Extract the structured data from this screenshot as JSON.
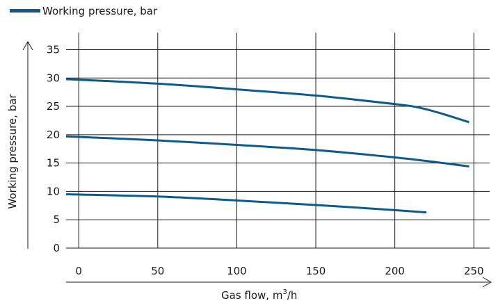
{
  "chart_data": {
    "type": "line",
    "xlabel": "Gas flow, m",
    "xlabel_sup": "3",
    "xlabel_suffix": "/h",
    "ylabel": "Working pressure, bar",
    "xlim": [
      -8,
      260
    ],
    "ylim": [
      0,
      38
    ],
    "xticks": [
      0,
      50,
      100,
      150,
      200,
      250
    ],
    "yticks": [
      0,
      5,
      10,
      15,
      20,
      25,
      30,
      35
    ],
    "xgrid": [
      0,
      50,
      100,
      150,
      200,
      250
    ],
    "ygrid": [
      5,
      10,
      15,
      20,
      25,
      30,
      35
    ],
    "grid": true,
    "legend": {
      "position": "top-left",
      "label": "Working pressure, bar",
      "color": "#0d5a8c"
    },
    "line_color": "#0d5a8c",
    "series": [
      {
        "x": [
          -8,
          50,
          100,
          150,
          200,
          215,
          230,
          247
        ],
        "y": [
          29.8,
          29.0,
          28.0,
          26.9,
          25.4,
          24.8,
          23.7,
          22.2
        ]
      },
      {
        "x": [
          -8,
          50,
          100,
          150,
          200,
          225,
          247
        ],
        "y": [
          19.7,
          19.0,
          18.2,
          17.3,
          16.0,
          15.2,
          14.4
        ]
      },
      {
        "x": [
          -8,
          50,
          100,
          150,
          200,
          220
        ],
        "y": [
          9.5,
          9.1,
          8.4,
          7.6,
          6.7,
          6.3
        ]
      }
    ]
  }
}
